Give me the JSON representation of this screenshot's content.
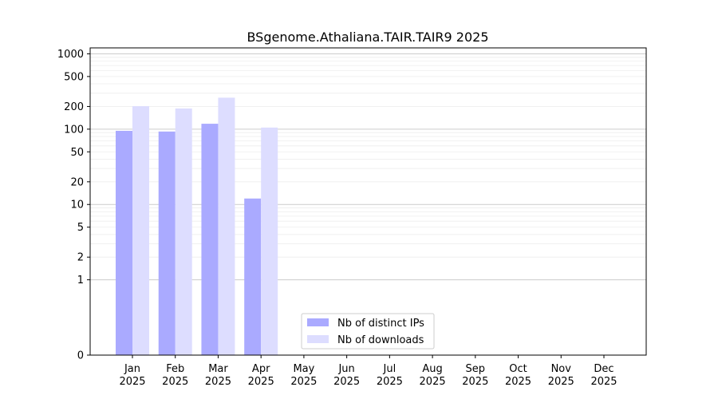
{
  "chart_data": {
    "type": "bar",
    "title": "BSgenome.Athaliana.TAIR.TAIR9 2025",
    "xlabel": "",
    "ylabel": "",
    "yscale": "symlog",
    "ylim": [
      0,
      1200
    ],
    "yticks": [
      0,
      1,
      2,
      5,
      10,
      20,
      50,
      100,
      200,
      500,
      1000
    ],
    "ytick_labels": [
      "0",
      "1",
      "2",
      "5",
      "10",
      "20",
      "50",
      "100",
      "200",
      "500",
      "1000"
    ],
    "categories": [
      {
        "month": "Jan",
        "year": "2025"
      },
      {
        "month": "Feb",
        "year": "2025"
      },
      {
        "month": "Mar",
        "year": "2025"
      },
      {
        "month": "Apr",
        "year": "2025"
      },
      {
        "month": "May",
        "year": "2025"
      },
      {
        "month": "Jun",
        "year": "2025"
      },
      {
        "month": "Jul",
        "year": "2025"
      },
      {
        "month": "Aug",
        "year": "2025"
      },
      {
        "month": "Sep",
        "year": "2025"
      },
      {
        "month": "Oct",
        "year": "2025"
      },
      {
        "month": "Nov",
        "year": "2025"
      },
      {
        "month": "Dec",
        "year": "2025"
      }
    ],
    "series": [
      {
        "name": "Nb of distinct IPs",
        "color": "#aaaaff",
        "values": [
          95,
          93,
          118,
          12,
          0,
          0,
          0,
          0,
          0,
          0,
          0,
          0
        ]
      },
      {
        "name": "Nb of downloads",
        "color": "#ddddff",
        "values": [
          202,
          188,
          262,
          105,
          0,
          0,
          0,
          0,
          0,
          0,
          0,
          0
        ]
      }
    ],
    "grid": true,
    "legend_position": "bottom-center"
  }
}
